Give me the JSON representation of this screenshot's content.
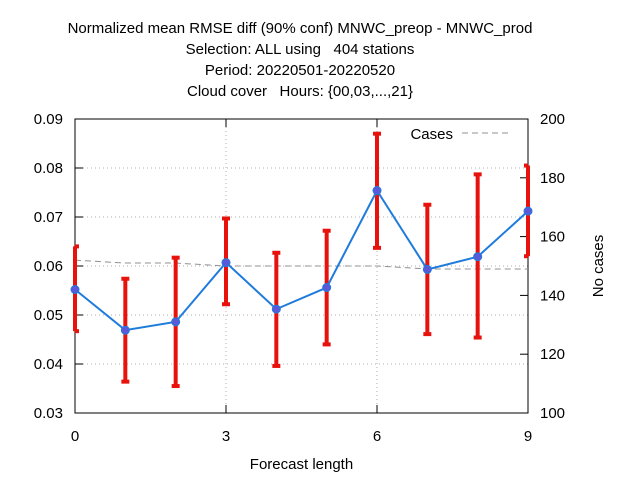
{
  "titles": [
    "Normalized mean RMSE diff (90% conf) MNWC_preop - MNWC_prod",
    "Selection: ALL using   404 stations",
    "Period: 20220501-20220520",
    "Cloud cover   Hours: {00,03,...,21}"
  ],
  "chart_data": {
    "type": "line",
    "title": "Normalized mean RMSE diff (90% conf) MNWC_preop - MNWC_prod",
    "subtitles": [
      "Selection: ALL using   404 stations",
      "Period: 20220501-20220520",
      "Cloud cover   Hours: {00,03,...,21}"
    ],
    "xlabel": "Forecast length",
    "ylabel": "",
    "y2label": "No cases",
    "xlim": [
      0,
      9
    ],
    "ylim": [
      0.03,
      0.09
    ],
    "y2lim": [
      100,
      200
    ],
    "x_ticks": [
      "0",
      "3",
      "6",
      "9"
    ],
    "y_ticks": [
      "0.03",
      "0.04",
      "0.05",
      "0.06",
      "0.07",
      "0.08",
      "0.09"
    ],
    "y2_ticks": [
      "100",
      "120",
      "140",
      "160",
      "180",
      "200"
    ],
    "grid": true,
    "legend_position": "top-right",
    "x": [
      0,
      1,
      2,
      3,
      4,
      5,
      6,
      7,
      8,
      9
    ],
    "series": [
      {
        "values": [
          0.0552,
          0.0469,
          0.0486,
          0.0607,
          0.0512,
          0.0556,
          0.0754,
          0.0593,
          0.0619,
          0.0712
        ],
        "err_low": [
          0.0467,
          0.0364,
          0.0355,
          0.0522,
          0.0396,
          0.044,
          0.0637,
          0.0461,
          0.0454,
          0.062
        ],
        "err_high": [
          0.064,
          0.0574,
          0.0617,
          0.0697,
          0.0627,
          0.0672,
          0.087,
          0.0725,
          0.0787,
          0.0805
        ],
        "color": "#1f7bdc",
        "marker_color": "#5a5ad8",
        "error_color": "#e8120c"
      },
      {
        "name": "Cases",
        "axis": "y2",
        "values": [
          152,
          151,
          151,
          150,
          150,
          150,
          150,
          149,
          149,
          149
        ],
        "color": "#909090",
        "dashed": true
      }
    ]
  }
}
